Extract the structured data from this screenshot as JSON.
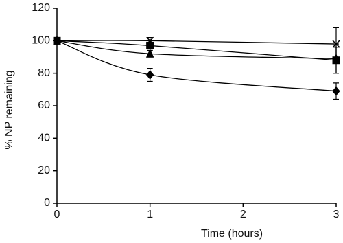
{
  "chart_data": {
    "type": "line",
    "x_label": "Time (hours)",
    "y_label": "% NP remaining",
    "x": [
      0,
      1,
      3
    ],
    "xlim": [
      0,
      3
    ],
    "xticks": [
      0,
      1,
      2,
      3
    ],
    "ylim": [
      0,
      120
    ],
    "yticks": [
      0,
      20,
      40,
      60,
      80,
      100,
      120
    ],
    "grid": false,
    "series": [
      {
        "marker": "diamond",
        "color": "#000000",
        "values": [
          100,
          79,
          69
        ],
        "errors": [
          1,
          4,
          5
        ]
      },
      {
        "marker": "square",
        "color": "#000000",
        "values": [
          100,
          97,
          88
        ],
        "errors": [
          1,
          3,
          8
        ]
      },
      {
        "marker": "triangle",
        "color": "#000000",
        "values": [
          100,
          92,
          89
        ],
        "errors": [
          1,
          2,
          9
        ]
      },
      {
        "marker": "x",
        "color": "#000000",
        "values": [
          100,
          100,
          98
        ],
        "errors": [
          1,
          2,
          10
        ]
      }
    ]
  }
}
